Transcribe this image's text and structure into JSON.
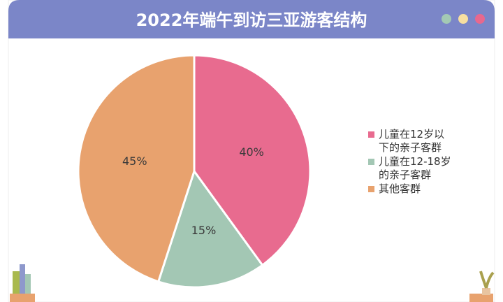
{
  "chart_data": {
    "type": "pie",
    "title": "2022年端午到访三亚游客结构",
    "categories": [
      "儿童在12岁以下的亲子客群",
      "儿童在12-18岁的亲子客群",
      "其他客群"
    ],
    "values": [
      40,
      15,
      45
    ],
    "value_labels": [
      "40%",
      "15%",
      "45%"
    ],
    "colors": [
      "#e86b8f",
      "#a3c7b4",
      "#e8a26e"
    ],
    "legend": "right"
  }
}
